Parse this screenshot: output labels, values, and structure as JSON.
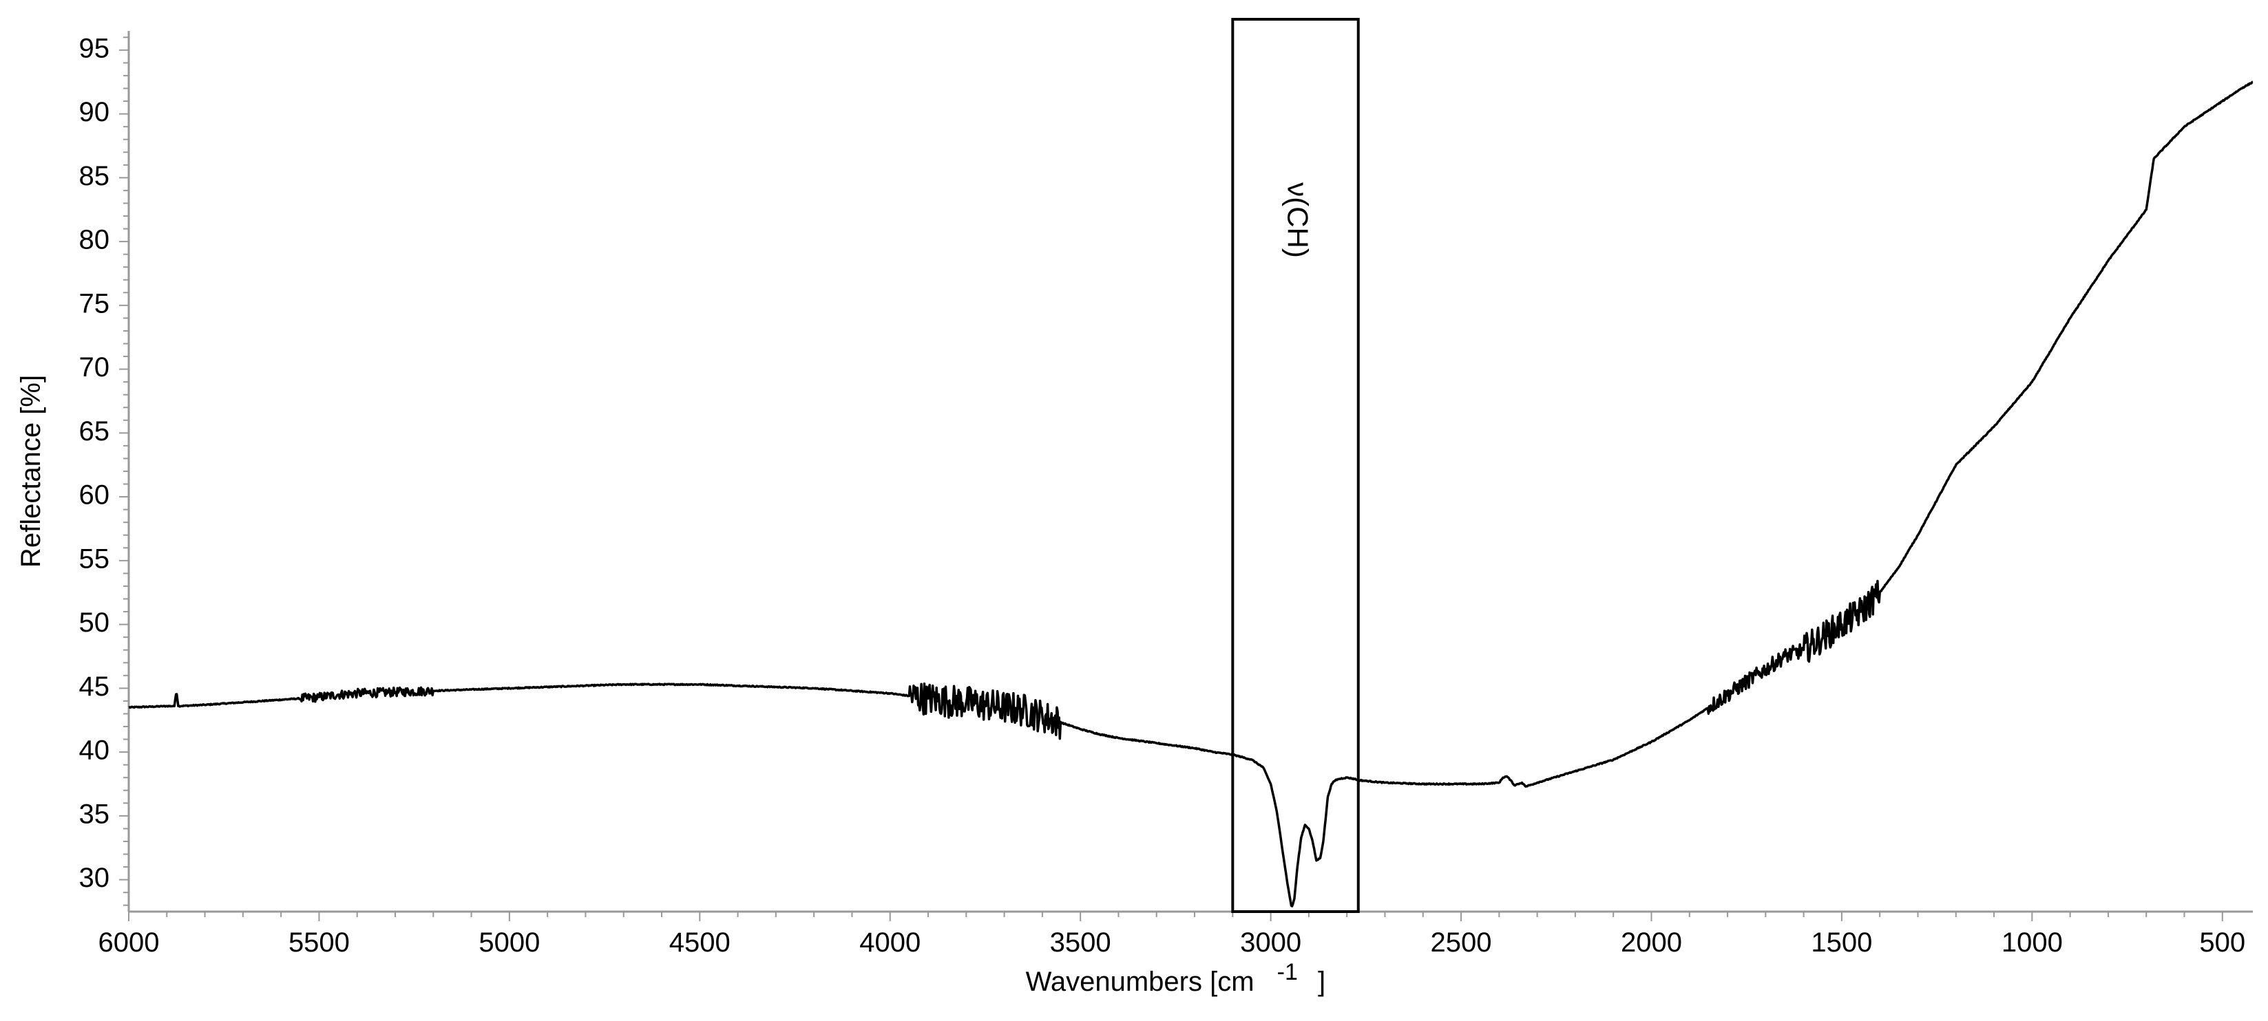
{
  "chart_data": {
    "type": "line",
    "title": "",
    "xlabel": "Wavenumbers [cm",
    "xlabel_superscript": "-1",
    "xlabel_suffix": "]",
    "ylabel": "Reflectance [%]",
    "xlim": [
      6000,
      420
    ],
    "x_reversed": true,
    "ylim": [
      27.5,
      96.5
    ],
    "x_ticks": [
      6000,
      5500,
      5000,
      4500,
      4000,
      3500,
      3000,
      2500,
      2000,
      1500,
      1000,
      500
    ],
    "y_ticks": [
      30,
      35,
      40,
      45,
      50,
      55,
      60,
      65,
      70,
      75,
      80,
      85,
      90,
      95
    ],
    "grid": false,
    "legend": false,
    "annotations": [
      {
        "type": "box",
        "x_range": [
          3100,
          2770
        ],
        "label": "ν(CH)"
      }
    ],
    "series": [
      {
        "color": "#000000",
        "x": [
          6000,
          5900,
          5880,
          5875,
          5870,
          5800,
          5700,
          5600,
          5500,
          5450,
          5400,
          5300,
          5200,
          5100,
          5000,
          4900,
          4800,
          4700,
          4600,
          4500,
          4400,
          4300,
          4200,
          4100,
          4000,
          3950,
          3900,
          3850,
          3800,
          3750,
          3700,
          3650,
          3600,
          3550,
          3500,
          3450,
          3400,
          3350,
          3300,
          3250,
          3200,
          3150,
          3100,
          3050,
          3020,
          3000,
          2985,
          2975,
          2965,
          2955,
          2945,
          2938,
          2930,
          2920,
          2910,
          2900,
          2890,
          2880,
          2870,
          2862,
          2855,
          2850,
          2840,
          2830,
          2820,
          2800,
          2780,
          2770,
          2700,
          2600,
          2500,
          2450,
          2400,
          2390,
          2380,
          2370,
          2360,
          2350,
          2340,
          2330,
          2300,
          2200,
          2100,
          2000,
          1900,
          1800,
          1700,
          1650,
          1600,
          1550,
          1500,
          1450,
          1400,
          1350,
          1300,
          1200,
          1100,
          1000,
          900,
          800,
          700,
          680,
          600,
          500,
          450,
          420
        ],
        "y": [
          43.5,
          43.6,
          43.6,
          44.8,
          43.6,
          43.7,
          43.9,
          44.1,
          44.3,
          44.5,
          44.6,
          44.7,
          44.8,
          44.9,
          45.0,
          45.1,
          45.2,
          45.3,
          45.3,
          45.3,
          45.2,
          45.1,
          45.0,
          44.8,
          44.6,
          44.4,
          44.2,
          44.0,
          43.9,
          43.7,
          43.5,
          43.3,
          42.8,
          42.3,
          41.8,
          41.4,
          41.1,
          40.9,
          40.7,
          40.5,
          40.3,
          40.0,
          39.8,
          39.4,
          38.8,
          37.5,
          35.5,
          33.5,
          31.5,
          29.5,
          27.8,
          28.5,
          31.0,
          33.3,
          34.3,
          34.0,
          33.0,
          31.5,
          31.7,
          33.0,
          35.0,
          36.5,
          37.5,
          37.8,
          37.9,
          38.0,
          37.9,
          37.8,
          37.6,
          37.5,
          37.5,
          37.5,
          37.6,
          38.0,
          38.1,
          37.8,
          37.4,
          37.5,
          37.6,
          37.3,
          37.6,
          38.5,
          39.4,
          40.8,
          42.5,
          44.5,
          46.5,
          47.5,
          48.0,
          49.0,
          50.0,
          51.0,
          52.5,
          54.5,
          57.0,
          62.5,
          65.5,
          69.0,
          74.0,
          78.5,
          82.5,
          86.5,
          89.0,
          91.0,
          92.0,
          92.5
        ]
      }
    ],
    "noise_regions": [
      {
        "x_range": [
          5550,
          5200
        ],
        "amplitude": 0.35
      },
      {
        "x_range": [
          3950,
          3550
        ],
        "amplitude": 1.3
      },
      {
        "x_range": [
          1850,
          1600
        ],
        "amplitude": 0.6
      },
      {
        "x_range": [
          1600,
          1400
        ],
        "amplitude": 1.2
      }
    ]
  }
}
